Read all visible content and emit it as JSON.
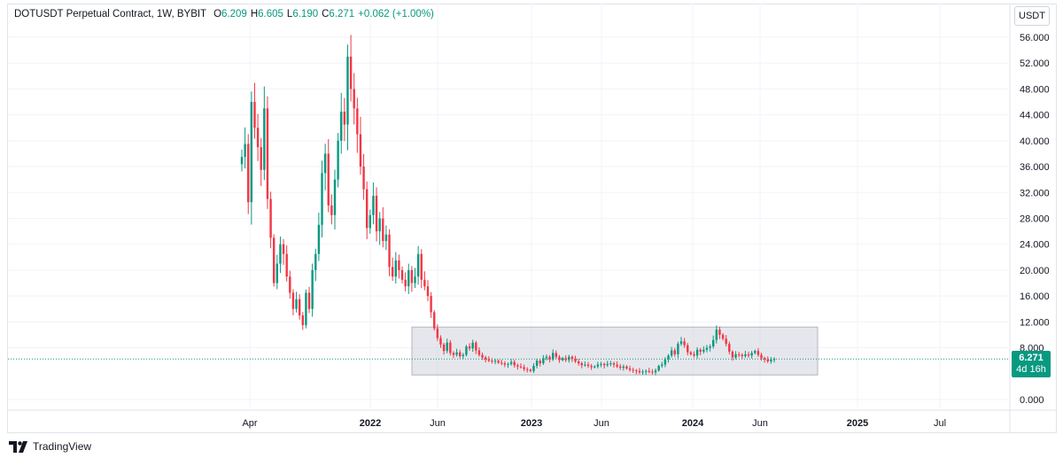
{
  "legend": {
    "symbol": "DOTUSDT Perpetual Contract, 1W, BYBIT",
    "open_label": "O",
    "open": "6.209",
    "high_label": "H",
    "high": "6.605",
    "low_label": "L",
    "low": "6.190",
    "close_label": "C",
    "close": "6.271",
    "change": "+0.062 (+1.00%)"
  },
  "currency_button": "USDT",
  "price_tag": {
    "price": "6.271",
    "countdown": "4d 16h"
  },
  "branding": "TradingView",
  "colors": {
    "up": "#089981",
    "down": "#f23645",
    "grid": "#f0f3fa",
    "range_box": "#d1d4dc"
  },
  "chart_data": {
    "type": "candlestick",
    "title": "DOTUSDT Perpetual Contract, 1W, BYBIT",
    "y_ticks": [
      "56.000",
      "52.000",
      "48.000",
      "44.000",
      "40.000",
      "36.000",
      "32.000",
      "28.000",
      "24.000",
      "20.000",
      "16.000",
      "12.000",
      "8.000",
      "0.000"
    ],
    "x_ticks": [
      {
        "label": "Apr",
        "bold": false
      },
      {
        "label": "2022",
        "bold": true
      },
      {
        "label": "Jun",
        "bold": false
      },
      {
        "label": "2023",
        "bold": true
      },
      {
        "label": "Jun",
        "bold": false
      },
      {
        "label": "2024",
        "bold": true
      },
      {
        "label": "Jun",
        "bold": false
      },
      {
        "label": "2025",
        "bold": true
      },
      {
        "label": "Jul",
        "bold": false
      }
    ],
    "ylim": [
      0,
      56
    ],
    "last_price": 6.271,
    "range_box": {
      "y_low": 3.8,
      "y_high": 11.2
    },
    "closes": [
      37.5,
      39.5,
      30.5,
      46.0,
      42.0,
      39.0,
      35.5,
      45.0,
      31.0,
      25.0,
      18.0,
      21.0,
      24.0,
      22.5,
      19.0,
      16.5,
      14.0,
      15.5,
      13.0,
      11.5,
      16.5,
      14.0,
      20.0,
      22.5,
      27.0,
      35.0,
      38.0,
      30.0,
      28.5,
      34.0,
      40.0,
      44.5,
      42.5,
      53.0,
      48.0,
      45.0,
      41.0,
      36.0,
      32.5,
      26.5,
      28.5,
      31.5,
      26.0,
      28.0,
      24.5,
      25.5,
      20.5,
      19.0,
      21.5,
      20.0,
      18.5,
      17.5,
      20.0,
      18.0,
      19.0,
      22.5,
      18.5,
      17.5,
      16.0,
      13.5,
      11.0,
      9.5,
      8.5,
      7.5,
      8.8,
      7.2,
      6.9,
      7.3,
      6.7,
      6.9,
      8.2,
      7.9,
      8.8,
      7.6,
      6.9,
      6.5,
      6.2,
      6.0,
      5.9,
      6.0,
      5.7,
      5.6,
      5.4,
      5.5,
      5.8,
      5.3,
      5.1,
      5.0,
      4.7,
      4.6,
      4.4,
      5.2,
      6.0,
      5.6,
      6.4,
      6.6,
      6.2,
      7.2,
      6.6,
      6.1,
      6.4,
      6.1,
      6.6,
      6.3,
      5.9,
      5.6,
      5.3,
      5.4,
      5.2,
      5.0,
      5.1,
      5.4,
      5.5,
      5.3,
      5.5,
      5.6,
      5.4,
      5.1,
      4.9,
      5.1,
      4.8,
      4.6,
      4.5,
      4.4,
      4.2,
      4.3,
      4.4,
      4.3,
      4.2,
      4.5,
      5.2,
      5.4,
      6.2,
      6.8,
      7.6,
      7.0,
      8.6,
      9.0,
      8.4,
      7.3,
      7.0,
      6.8,
      7.7,
      7.4,
      7.7,
      8.0,
      8.2,
      9.2,
      10.8,
      10.0,
      9.4,
      8.6,
      7.4,
      6.5,
      7.0,
      6.9,
      6.7,
      7.0,
      6.8,
      7.2,
      7.5,
      6.9,
      6.4,
      6.2,
      5.9,
      6.2,
      6.271
    ]
  }
}
